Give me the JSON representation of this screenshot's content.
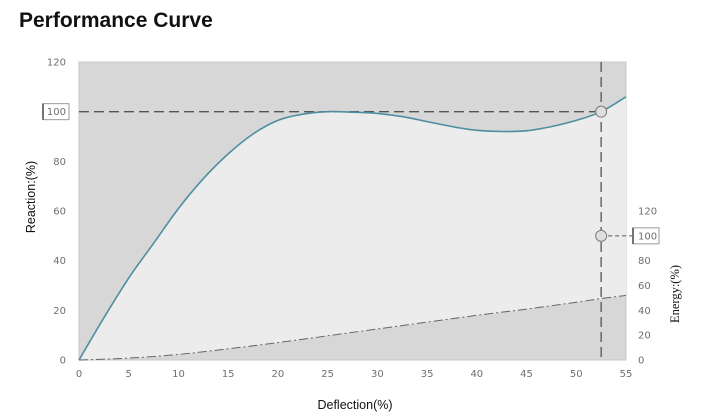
{
  "chart_data": {
    "type": "area",
    "title": "Performance Curve",
    "xlabel": "Deflection(%)",
    "ylabel": "Reaction:(%)",
    "y2label": "Energy:(%)",
    "xlim": [
      0,
      55
    ],
    "ylim": [
      0,
      120
    ],
    "y2lim": [
      0,
      120
    ],
    "x_ticks": [
      0,
      5,
      10,
      15,
      20,
      25,
      30,
      35,
      40,
      45,
      50,
      55
    ],
    "y_ticks": [
      0,
      20,
      40,
      60,
      80,
      100,
      120
    ],
    "y2_ticks": [
      0,
      20,
      40,
      60,
      80,
      100,
      120
    ],
    "series": [
      {
        "name": "Reaction",
        "axis": "left",
        "x": [
          0,
          2.5,
          5,
          7.5,
          10,
          12.5,
          15,
          17.5,
          20,
          22.5,
          25,
          27.5,
          30,
          32.5,
          35,
          37.5,
          40,
          42.5,
          45,
          47.5,
          50,
          52.5,
          55
        ],
        "y": [
          0,
          17,
          33,
          47,
          61,
          73,
          83,
          91,
          96.5,
          99,
          100,
          99.8,
          99.3,
          98,
          96,
          94,
          92.5,
          92,
          92.3,
          94,
          96.5,
          100,
          106
        ]
      },
      {
        "name": "Energy",
        "axis": "right",
        "x": [
          0,
          5,
          10,
          15,
          20,
          25,
          30,
          35,
          40,
          45,
          50,
          52.5,
          55
        ],
        "y": [
          0,
          1.5,
          4.5,
          9,
          14,
          19.5,
          25,
          30.5,
          36,
          41,
          46.5,
          49.5,
          52
        ]
      }
    ],
    "reference_lines": [
      {
        "axis": "left",
        "value": 100,
        "style": "dashed"
      },
      {
        "axis": "right",
        "value": 100,
        "style": "dashed"
      },
      {
        "axis": "x",
        "value": 52.5,
        "style": "dashed"
      }
    ],
    "markers": [
      {
        "axis": "left",
        "x": 52.5,
        "y": 100
      },
      {
        "axis": "right",
        "x": 52.5,
        "y": 100
      }
    ],
    "highlighted_ticks": {
      "left": 100,
      "right": 100
    },
    "grid": false,
    "legend": "none",
    "colors": {
      "background_region": "#d7d7d7",
      "inner_region": "#ececec",
      "lower_region": "#d9d9d9",
      "reaction_line": "#4f8ea1",
      "energy_line": "#666666",
      "reference_line": "#555555",
      "marker_fill": "#dedede",
      "marker_stroke": "#7a7a7a"
    }
  }
}
